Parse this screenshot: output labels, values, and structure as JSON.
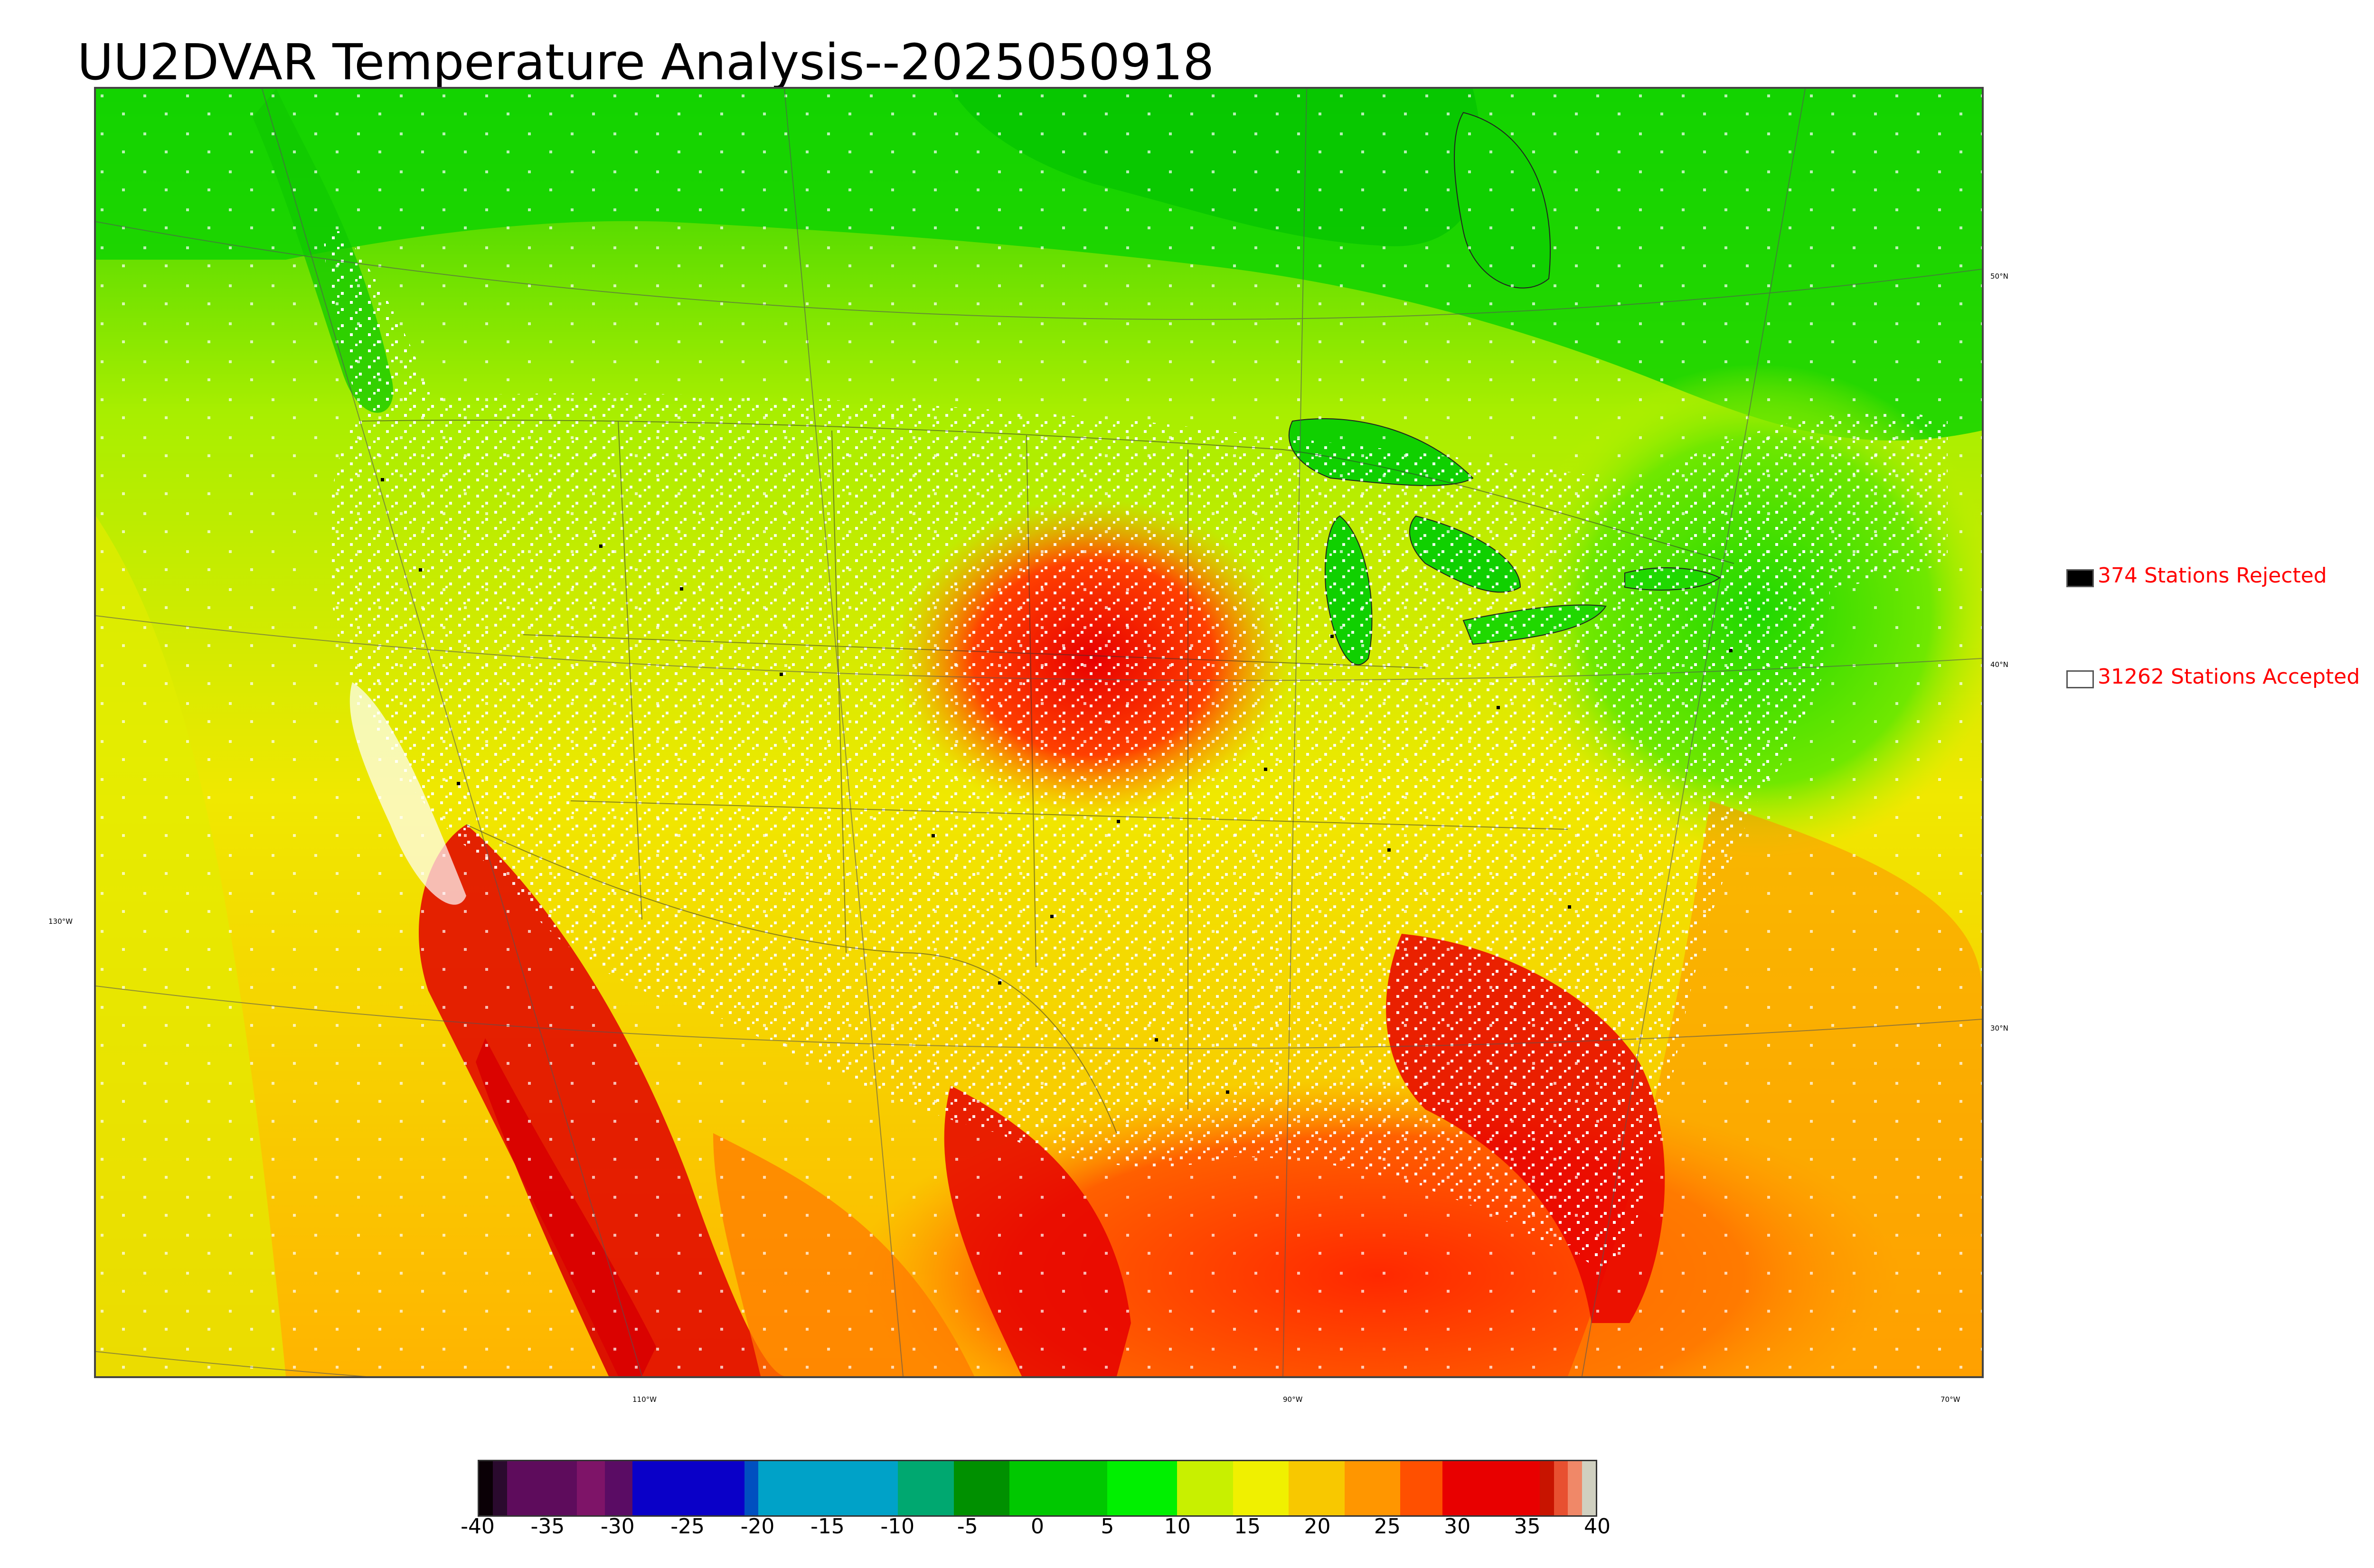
{
  "title": "UU2DVAR Temperature Analysis--2025050918",
  "map": {
    "lat_labels": [
      "50°N",
      "40°N",
      "30°N"
    ],
    "lon_labels": [
      "130°W",
      "110°W",
      "90°W",
      "70°W"
    ]
  },
  "legend": {
    "rejected": {
      "text": "374 Stations Rejected",
      "swatch_color": "#000000"
    },
    "accepted": {
      "text": "31262 Stations Accepted",
      "swatch_color": "#ffffff"
    }
  },
  "colorbar": {
    "min": -40,
    "max": 40,
    "tick_labels": [
      "-40",
      "-35",
      "-30",
      "-25",
      "-20",
      "-15",
      "-10",
      "-5",
      "0",
      "5",
      "10",
      "15",
      "20",
      "25",
      "30",
      "35",
      "40"
    ],
    "segments": [
      {
        "from": -40,
        "to": -39,
        "color": "#0a0006"
      },
      {
        "from": -39,
        "to": -38,
        "color": "#2a0a2e"
      },
      {
        "from": -38,
        "to": -33,
        "color": "#5e0c5c"
      },
      {
        "from": -33,
        "to": -31,
        "color": "#7e1468"
      },
      {
        "from": -31,
        "to": -29,
        "color": "#5a0c64"
      },
      {
        "from": -29,
        "to": -21,
        "color": "#0a00c8"
      },
      {
        "from": -21,
        "to": -20,
        "color": "#0050c0"
      },
      {
        "from": -20,
        "to": -10,
        "color": "#00a2c8"
      },
      {
        "from": -10,
        "to": -6,
        "color": "#00a870"
      },
      {
        "from": -6,
        "to": -2,
        "color": "#009000"
      },
      {
        "from": -2,
        "to": 5,
        "color": "#00c800"
      },
      {
        "from": 5,
        "to": 10,
        "color": "#00f000"
      },
      {
        "from": 10,
        "to": 14,
        "color": "#c8f000"
      },
      {
        "from": 14,
        "to": 18,
        "color": "#f0f000"
      },
      {
        "from": 18,
        "to": 22,
        "color": "#f8c800"
      },
      {
        "from": 22,
        "to": 26,
        "color": "#ff9600"
      },
      {
        "from": 26,
        "to": 29,
        "color": "#ff5000"
      },
      {
        "from": 29,
        "to": 36,
        "color": "#e80000"
      },
      {
        "from": 36,
        "to": 37,
        "color": "#c81400"
      },
      {
        "from": 37,
        "to": 38,
        "color": "#e85030"
      },
      {
        "from": 38,
        "to": 39,
        "color": "#f08868"
      },
      {
        "from": 39,
        "to": 40,
        "color": "#d0d0c0"
      }
    ]
  }
}
